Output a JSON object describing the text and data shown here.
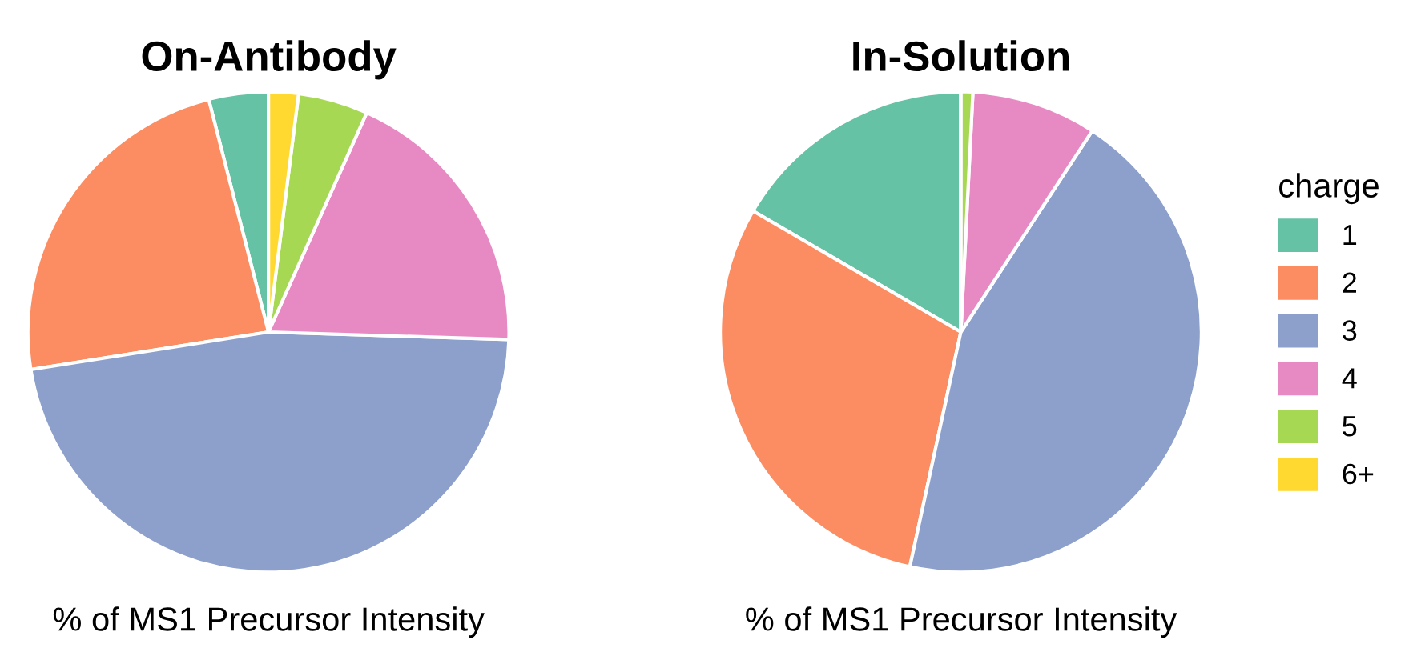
{
  "chart_data": [
    {
      "type": "pie",
      "title": "On-Antibody",
      "xlabel": "% of MS1 Precursor Intensity",
      "categories": [
        "1",
        "2",
        "3",
        "4",
        "5",
        "6+"
      ],
      "values": [
        4,
        23.5,
        47,
        18.8,
        4.7,
        2
      ],
      "colors": [
        "#66c2a5",
        "#fc8d62",
        "#8da0cb",
        "#e78ac3",
        "#a6d854",
        "#ffd92f"
      ],
      "legend": "right",
      "legend_title": "charge"
    },
    {
      "type": "pie",
      "title": "In-Solution",
      "xlabel": "% of MS1 Precursor Intensity",
      "categories": [
        null,
        null,
        null,
        null,
        null,
        null
      ],
      "values": [
        16.6,
        30,
        44.2,
        8.4,
        0.8,
        0
      ],
      "colors": [
        "#66c2a5",
        "#fc8d62",
        "#8da0cb",
        "#e78ac3",
        "#a6d854",
        "#ffd92f"
      ]
    }
  ]
}
